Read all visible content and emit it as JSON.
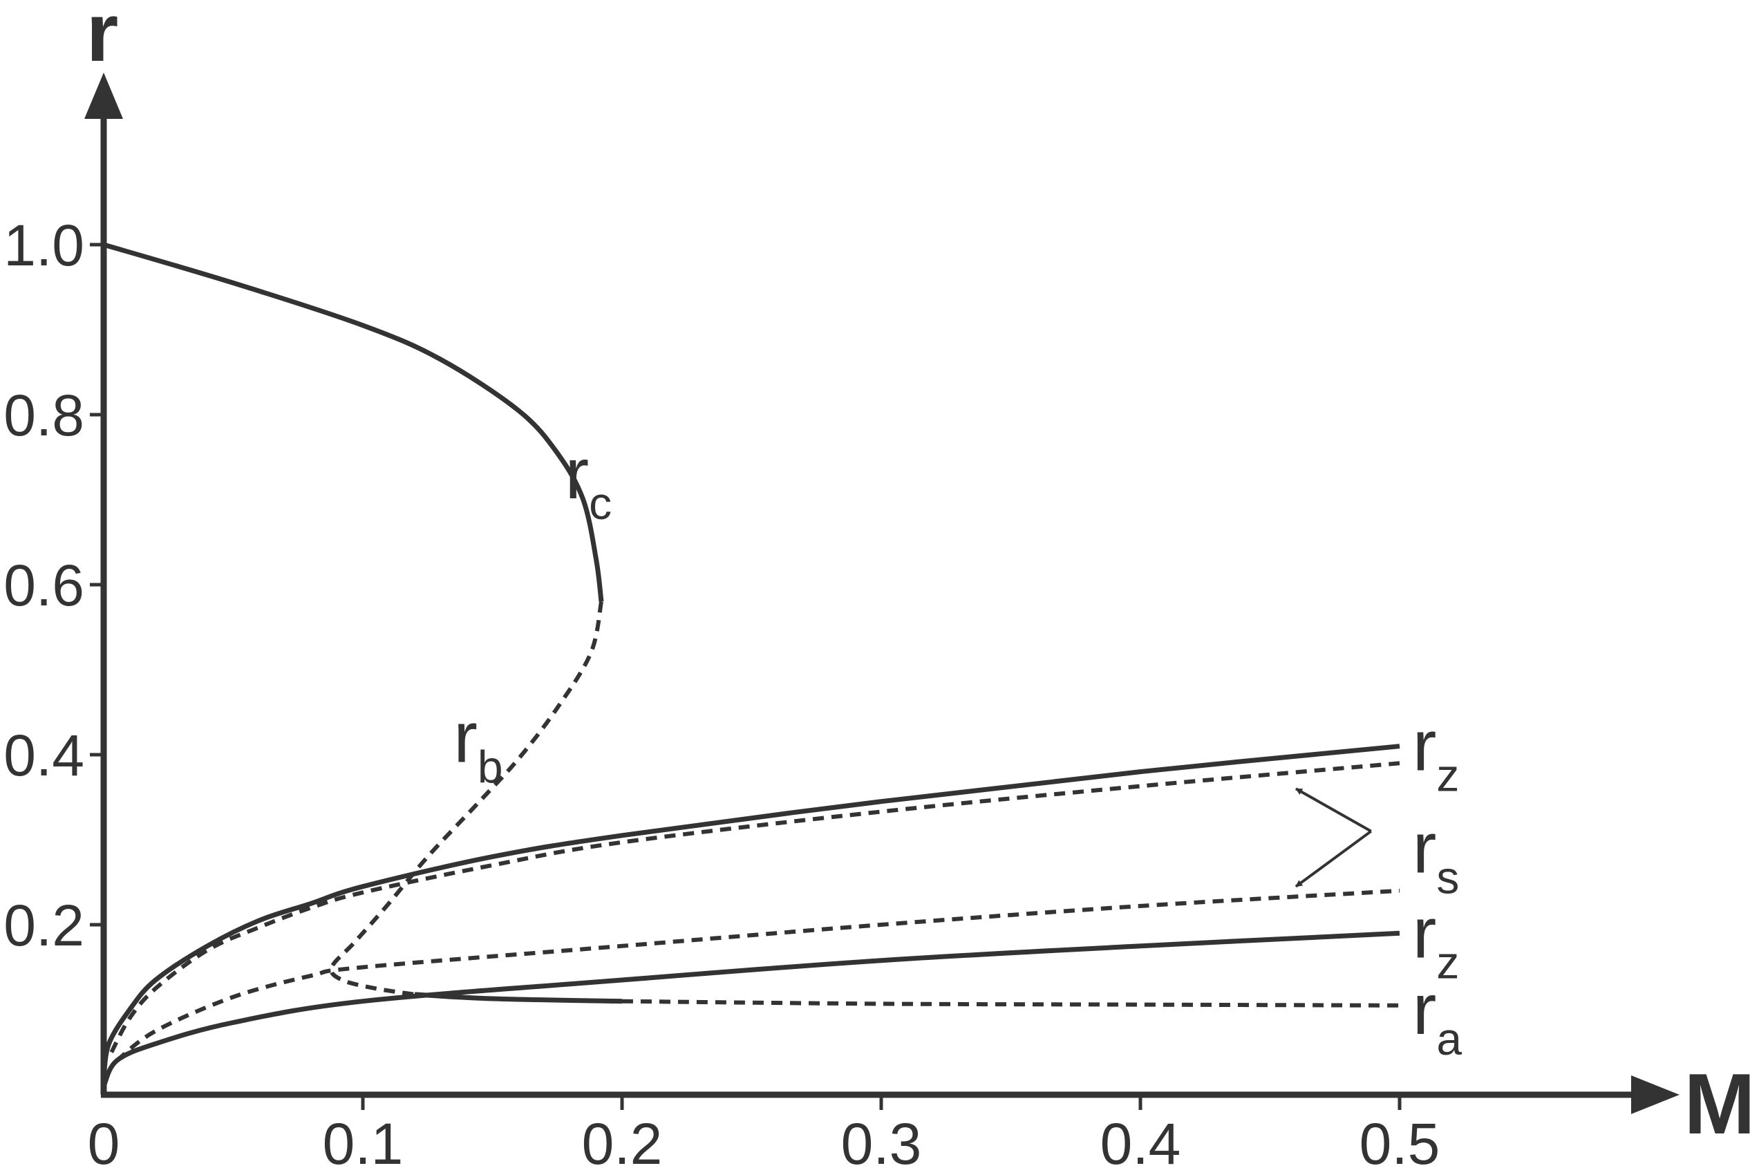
{
  "chart_data": {
    "type": "line",
    "xlabel": "M",
    "ylabel": "r",
    "xlim": [
      0,
      0.6
    ],
    "ylim": [
      0,
      1.2
    ],
    "x_ticks": [
      {
        "value": 0,
        "label": "0"
      },
      {
        "value": 0.1,
        "label": "0.1"
      },
      {
        "value": 0.2,
        "label": "0.2"
      },
      {
        "value": 0.3,
        "label": "0.3"
      },
      {
        "value": 0.4,
        "label": "0.4"
      },
      {
        "value": 0.5,
        "label": "0.5"
      }
    ],
    "y_ticks": [
      {
        "value": 0.2,
        "label": "0.2"
      },
      {
        "value": 0.4,
        "label": "0.4"
      },
      {
        "value": 0.6,
        "label": "0.6"
      },
      {
        "value": 0.8,
        "label": "0.8"
      },
      {
        "value": 1.0,
        "label": "1.0"
      }
    ],
    "grid": false,
    "series": [
      {
        "name": "r_c",
        "style": "solid",
        "points": [
          [
            0,
            1.0
          ],
          [
            0.05,
            0.955
          ],
          [
            0.1,
            0.905
          ],
          [
            0.13,
            0.865
          ],
          [
            0.16,
            0.805
          ],
          [
            0.175,
            0.755
          ],
          [
            0.185,
            0.7
          ],
          [
            0.19,
            0.63
          ],
          [
            0.192,
            0.58
          ]
        ]
      },
      {
        "name": "r_b",
        "style": "dashed",
        "points": [
          [
            0.192,
            0.58
          ],
          [
            0.188,
            0.52
          ],
          [
            0.175,
            0.455
          ],
          [
            0.16,
            0.395
          ],
          [
            0.145,
            0.345
          ],
          [
            0.125,
            0.28
          ],
          [
            0.11,
            0.225
          ],
          [
            0.097,
            0.18
          ],
          [
            0.088,
            0.15
          ],
          [
            0.092,
            0.135
          ],
          [
            0.105,
            0.125
          ],
          [
            0.12,
            0.118
          ]
        ]
      },
      {
        "name": "r_a",
        "style": "solid",
        "points": [
          [
            0.12,
            0.118
          ],
          [
            0.15,
            0.113
          ],
          [
            0.2,
            0.11
          ]
        ]
      },
      {
        "name": "r_a",
        "style": "dashed",
        "points": [
          [
            0.2,
            0.11
          ],
          [
            0.3,
            0.107
          ],
          [
            0.4,
            0.106
          ],
          [
            0.5,
            0.105
          ]
        ]
      },
      {
        "name": "r_z",
        "style": "solid",
        "points": [
          [
            0,
            0.02
          ],
          [
            0.002,
            0.06
          ],
          [
            0.01,
            0.1
          ],
          [
            0.02,
            0.135
          ],
          [
            0.04,
            0.175
          ],
          [
            0.06,
            0.205
          ],
          [
            0.08,
            0.225
          ],
          [
            0.1,
            0.245
          ],
          [
            0.15,
            0.28
          ],
          [
            0.2,
            0.305
          ],
          [
            0.3,
            0.345
          ],
          [
            0.4,
            0.38
          ],
          [
            0.5,
            0.41
          ]
        ]
      },
      {
        "name": "r_s",
        "style": "dashed",
        "points": [
          [
            0.003,
            0.05
          ],
          [
            0.01,
            0.09
          ],
          [
            0.02,
            0.125
          ],
          [
            0.04,
            0.17
          ],
          [
            0.06,
            0.197
          ],
          [
            0.08,
            0.22
          ],
          [
            0.1,
            0.238
          ],
          [
            0.15,
            0.27
          ],
          [
            0.2,
            0.297
          ],
          [
            0.3,
            0.333
          ],
          [
            0.4,
            0.363
          ],
          [
            0.5,
            0.39
          ]
        ]
      },
      {
        "name": "r_s",
        "style": "dashed",
        "points": [
          [
            0.005,
            0.04
          ],
          [
            0.02,
            0.075
          ],
          [
            0.05,
            0.115
          ],
          [
            0.08,
            0.14
          ],
          [
            0.1,
            0.15
          ],
          [
            0.2,
            0.175
          ],
          [
            0.3,
            0.2
          ],
          [
            0.4,
            0.222
          ],
          [
            0.5,
            0.24
          ]
        ]
      },
      {
        "name": "r_z",
        "style": "solid",
        "points": [
          [
            0,
            0.01
          ],
          [
            0.005,
            0.04
          ],
          [
            0.02,
            0.06
          ],
          [
            0.05,
            0.085
          ],
          [
            0.1,
            0.11
          ],
          [
            0.2,
            0.135
          ],
          [
            0.3,
            0.158
          ],
          [
            0.4,
            0.175
          ],
          [
            0.5,
            0.19
          ]
        ]
      }
    ],
    "curve_labels": [
      {
        "base": "r",
        "sub": "c",
        "x": 0.178,
        "y": 0.73
      },
      {
        "base": "r",
        "sub": "b",
        "x": 0.135,
        "y": 0.42
      },
      {
        "base": "r",
        "sub": "z",
        "x": 0.505,
        "y": 0.41
      },
      {
        "base": "r",
        "sub": "s",
        "x": 0.505,
        "y": 0.29
      },
      {
        "base": "r",
        "sub": "z",
        "x": 0.505,
        "y": 0.19
      },
      {
        "base": "r",
        "sub": "a",
        "x": 0.505,
        "y": 0.1
      }
    ],
    "arrows": [
      {
        "from": [
          0.505,
          0.31
        ],
        "to": [
          0.46,
          0.36
        ]
      },
      {
        "from": [
          0.505,
          0.31
        ],
        "to": [
          0.46,
          0.245
        ]
      }
    ]
  }
}
